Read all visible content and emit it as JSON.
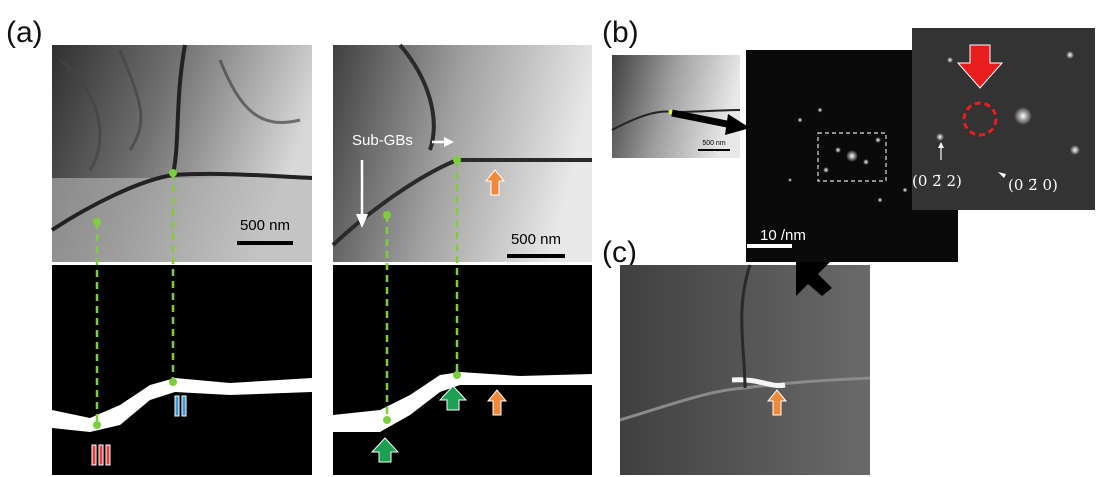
{
  "panels": {
    "a": {
      "label": "(a)",
      "left": {
        "scale_bar": "500 nm"
      },
      "right": {
        "scale_bar": "500 nm",
        "annotation": "Sub-GBs"
      }
    },
    "b": {
      "label": "(b)",
      "thumbnail_scale_bar": "500 nm",
      "diffraction_scale_bar": "10 /nm",
      "spot_labels": [
        "(0 2̄ 2)",
        "(0 2̄ 0)"
      ]
    },
    "c": {
      "label": "(c)"
    }
  }
}
